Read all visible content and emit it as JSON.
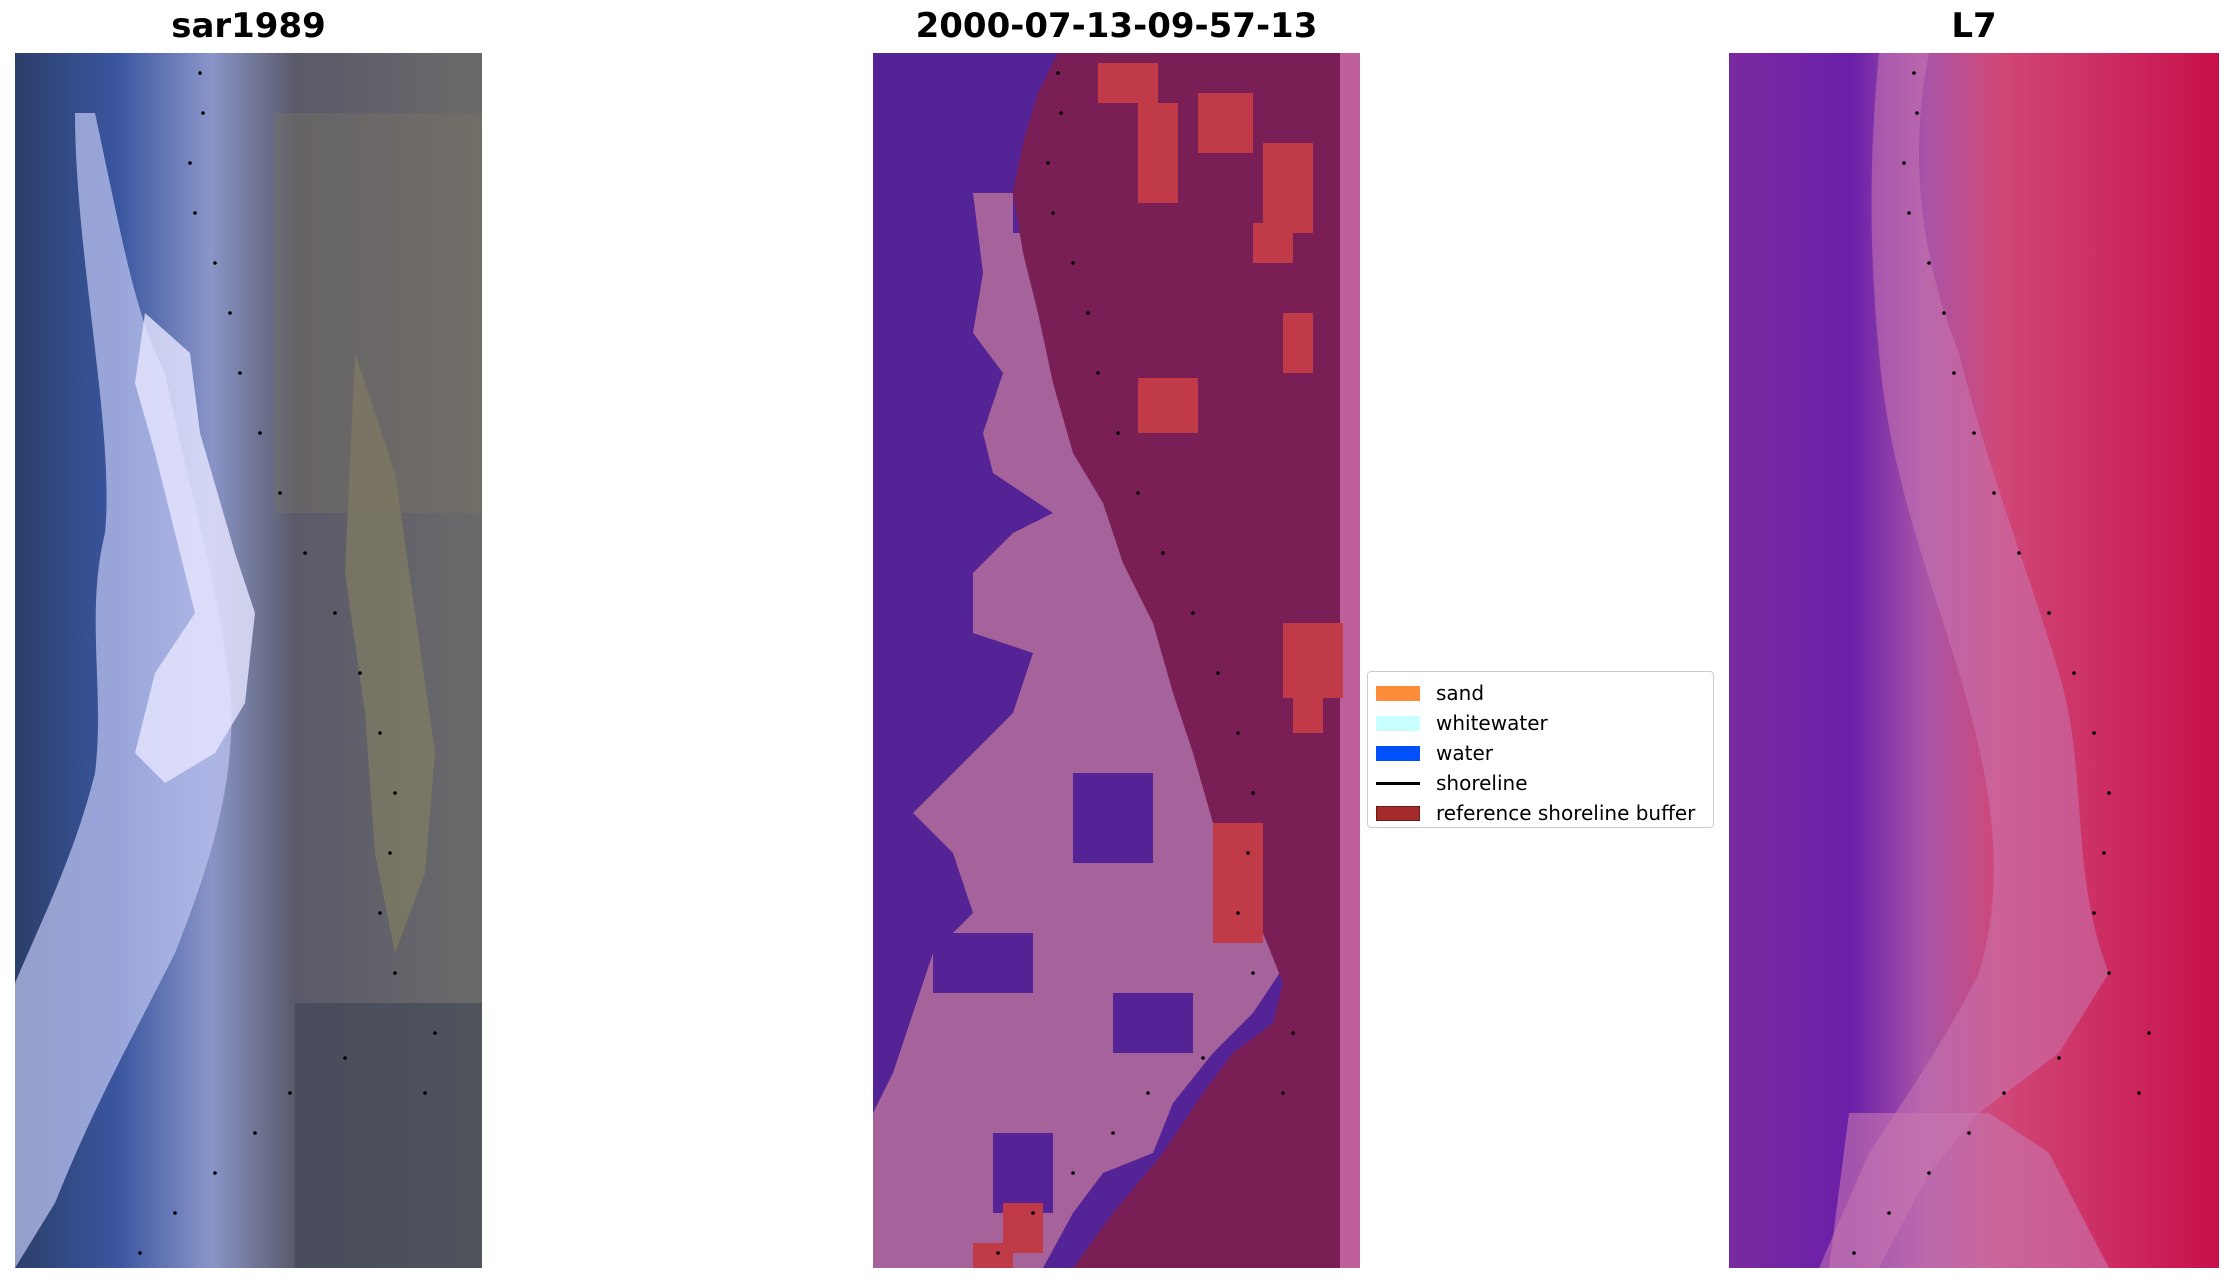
{
  "panels": [
    {
      "title": "sar1989",
      "kind": "rgb-composite"
    },
    {
      "title": "2000-07-13-09-57-13",
      "kind": "classification"
    },
    {
      "title": "L7",
      "kind": "false-color"
    }
  ],
  "legend": {
    "items": [
      {
        "label": "sand",
        "color": "#ff8c3a",
        "type": "patch"
      },
      {
        "label": "whitewater",
        "color": "#c8ffff",
        "type": "patch"
      },
      {
        "label": "water",
        "color": "#0050ff",
        "type": "patch"
      },
      {
        "label": "shoreline",
        "color": "#000000",
        "type": "line"
      },
      {
        "label": "reference shoreline buffer",
        "color": "#a52a2a",
        "type": "patch"
      }
    ]
  },
  "colors": {
    "class_water": "#542396",
    "class_sand": "#a6629a",
    "class_land": "#7a1f55",
    "class_buffer": "#c03a48",
    "class_edge": "#c0609a"
  }
}
